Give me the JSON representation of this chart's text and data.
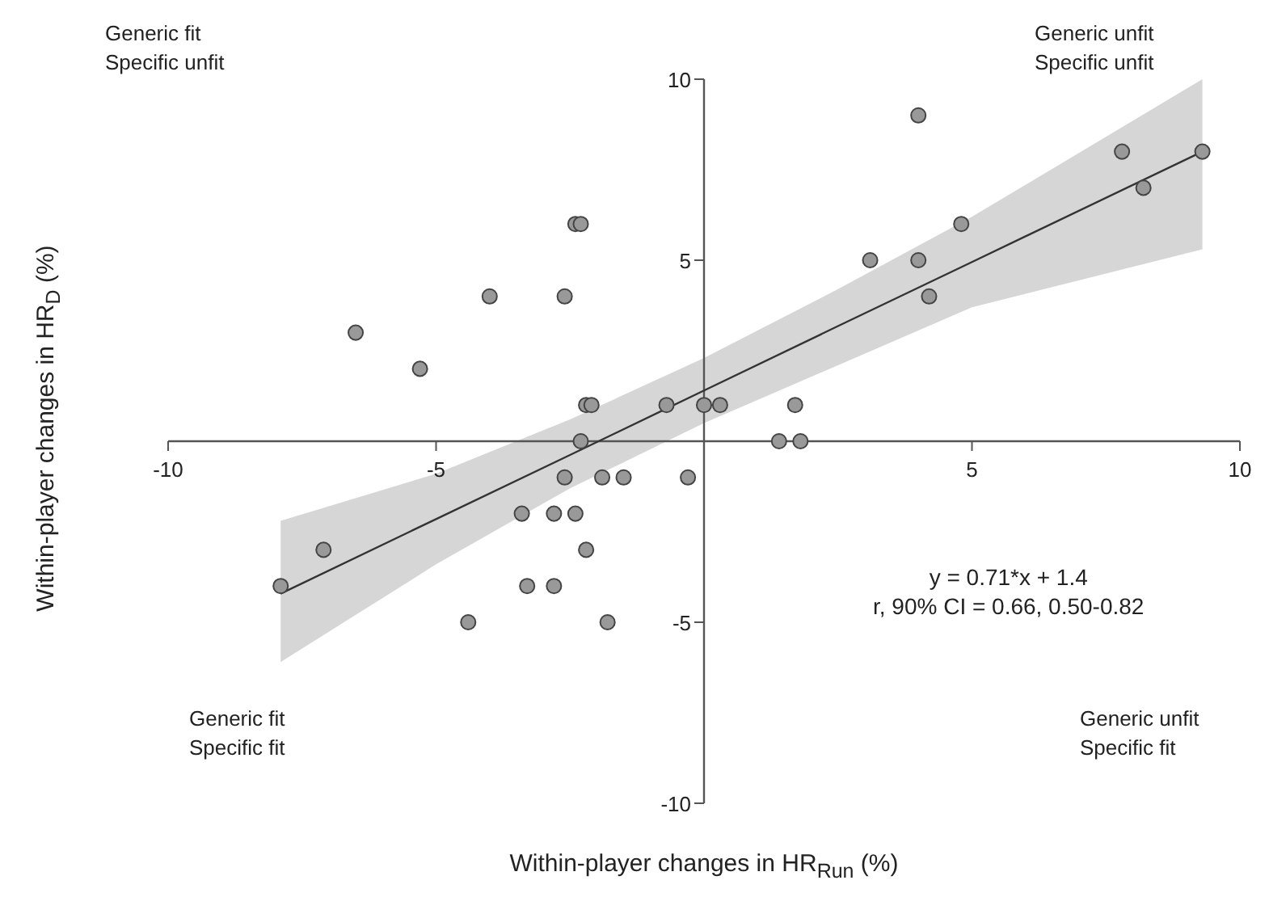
{
  "chart_data": {
    "type": "scatter",
    "xlabel": "Within-player changes in HR$_{Run}$ (%)",
    "ylabel": "Within-player changes in HR$_{D}$ (%)",
    "xlim": [
      -10,
      10
    ],
    "ylim": [
      -10,
      10
    ],
    "xticks": [
      -10,
      -5,
      5,
      10
    ],
    "yticks": [
      -10,
      -5,
      5,
      10
    ],
    "annotations": [
      "Generic fit\nSpecific unfit",
      "Generic unfit\nSpecific unfit",
      "Generic fit\nSpecific fit",
      "Generic unfit\nSpecific fit",
      "y = 0.71*x + 1.4\nr, 90% CI = 0.66, 0.50-0.82"
    ],
    "series": [
      {
        "type": "scatter",
        "marker": "circle",
        "color": "#999999",
        "x": [
          -2.4,
          -2.3,
          -4.0,
          -2.6,
          -6.5,
          -5.3,
          -2.2,
          -2.1,
          -0.7,
          0,
          0.3,
          -2.3,
          -2.6,
          -1.9,
          -1.5,
          -0.3,
          -3.4,
          -2.8,
          -2.4,
          -2.2,
          -7.1,
          -7.9,
          -3.3,
          -2.8,
          -4.4,
          -1.8,
          7.8,
          9.3,
          8.2,
          4.0,
          4.8,
          3.1,
          4.0,
          4.2,
          1.7,
          1.4,
          1.8
        ],
        "values": [
          6,
          6,
          4,
          4,
          3,
          2,
          1,
          1,
          1,
          1,
          1,
          0,
          -1,
          -1,
          -1,
          -1,
          -2,
          -2,
          -2,
          -3,
          -3,
          -4,
          -4,
          -4,
          -5,
          -5,
          8,
          8,
          7,
          9,
          6,
          5,
          5,
          4,
          1,
          0,
          0
        ]
      },
      {
        "type": "line",
        "marker": "none",
        "color": "#333333",
        "x": [
          -7.9,
          -5,
          -2.5,
          0,
          2.5,
          5,
          9.3
        ],
        "values": [
          -4.21,
          -2.15,
          -0.38,
          1.4,
          3.18,
          4.95,
          8.0
        ],
        "lower": [
          -6.1,
          -3.4,
          -1.3,
          0.5,
          2.1,
          3.7,
          5.3
        ],
        "upper": [
          -2.2,
          -0.9,
          0.6,
          2.3,
          4.2,
          6.2,
          10.0
        ]
      }
    ]
  }
}
